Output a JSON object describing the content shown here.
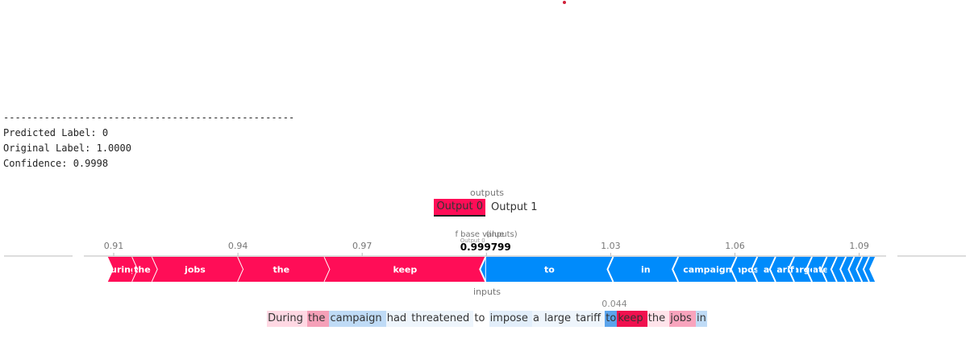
{
  "console": {
    "separator": "--------------------------------------------------",
    "predicted": "Predicted Label: 0",
    "original": "Original Label: 1.0000",
    "confidence": "Confidence: 0.9998"
  },
  "outputs": {
    "title": "outputs",
    "options": [
      "Output 0",
      "Output 1"
    ],
    "selected": "Output 0"
  },
  "chart_data": {
    "type": "force",
    "ticks": [
      "0.91",
      "0.94",
      "0.97",
      "1",
      "1.03",
      "1.06",
      "1.09"
    ],
    "tick_values": [
      0.91,
      0.94,
      0.97,
      1.0,
      1.03,
      1.06,
      1.09
    ],
    "base_label": "base value",
    "fx_label": "f",
    "fx_sub": "Output 0",
    "inputs_label": "(inputs)",
    "fx_value": "0.999799",
    "positive_color": "#ff0d57",
    "negative_color": "#008bfb",
    "positive_segments": [
      {
        "label": "During",
        "start": 0.9086,
        "end": 0.9145
      },
      {
        "label": "the",
        "start": 0.9145,
        "end": 0.9193
      },
      {
        "label": "jobs",
        "start": 0.9193,
        "end": 0.94
      },
      {
        "label": "the",
        "start": 0.94,
        "end": 0.9609
      },
      {
        "label": "keep",
        "start": 0.9609,
        "end": 0.999799
      }
    ],
    "negative_segments": [
      {
        "label": "to",
        "start": 0.999799,
        "end": 1.0306
      },
      {
        "label": "in",
        "start": 1.0306,
        "end": 1.0463
      },
      {
        "label": "campaign",
        "start": 1.0463,
        "end": 1.0604
      },
      {
        "label": "impose",
        "start": 1.0604,
        "end": 1.0654
      },
      {
        "label": "a",
        "start": 1.0654,
        "end": 1.0698
      },
      {
        "label": "tariff",
        "start": 1.0698,
        "end": 1.0743
      },
      {
        "label": "large",
        "start": 1.0743,
        "end": 1.0786
      },
      {
        "label": "threatened",
        "start": 1.0786,
        "end": 1.0822
      },
      {
        "label": "",
        "start": 1.0822,
        "end": 1.0846
      },
      {
        "label": "",
        "start": 1.0846,
        "end": 1.0868
      },
      {
        "label": "",
        "start": 1.0868,
        "end": 1.0888
      },
      {
        "label": "",
        "start": 1.0888,
        "end": 1.0907
      },
      {
        "label": "",
        "start": 1.0907,
        "end": 1.0924
      },
      {
        "label": "",
        "start": 1.0924,
        "end": 1.0938
      }
    ]
  },
  "inputs": {
    "title": "inputs",
    "hover_value": "0.044",
    "tokens": [
      {
        "text": "During ",
        "color": "#ffd8e3"
      },
      {
        "text": "the ",
        "color": "#f5a0b8"
      },
      {
        "text": "campaign ",
        "color": "#bfdbf6"
      },
      {
        "text": "had ",
        "color": "#eef5fc"
      },
      {
        "text": "threatened ",
        "color": "#eef5fc"
      },
      {
        "text": "to ",
        "color": "#ffffff"
      },
      {
        "text": "impose ",
        "color": "#e2eefa"
      },
      {
        "text": "a ",
        "color": "#eef5fc"
      },
      {
        "text": "large ",
        "color": "#eef5fc"
      },
      {
        "text": "tariff ",
        "color": "#eef5fc"
      },
      {
        "text": "to",
        "color": "#5ba4ec"
      },
      {
        "text": "keep ",
        "color": "#f0114f"
      },
      {
        "text": "the ",
        "color": "#ffe3ea"
      },
      {
        "text": "jobs ",
        "color": "#f8a4bd"
      },
      {
        "text": "in",
        "color": "#bfdbf6"
      }
    ]
  }
}
